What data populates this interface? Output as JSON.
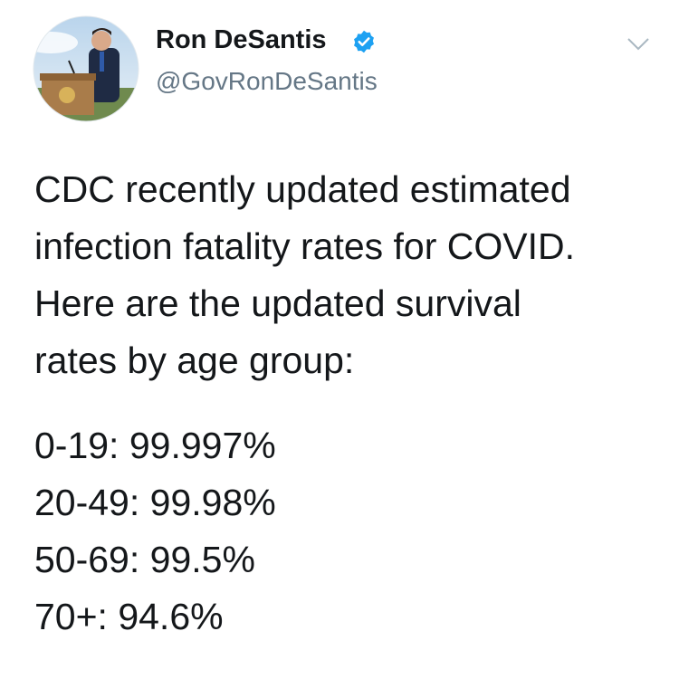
{
  "user": {
    "name": "Ron DeSantis",
    "handle": "@GovRonDeSantis"
  },
  "tweet": {
    "paragraph": [
      "CDC recently updated estimated",
      "infection fatality rates for COVID.",
      "Here are the updated survival",
      "rates by age group:"
    ],
    "stats": [
      "0-19: 99.997%",
      "20-49: 99.98%",
      "50-69: 99.5%",
      "70+: 94.6%"
    ]
  }
}
